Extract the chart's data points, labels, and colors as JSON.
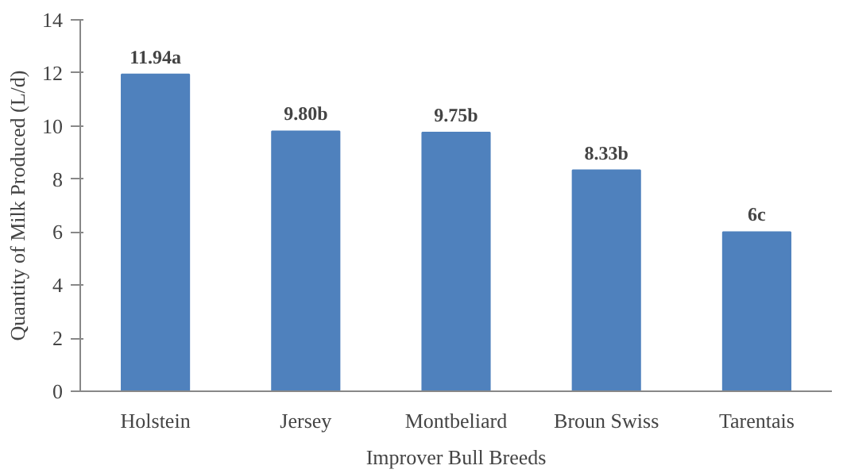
{
  "chart_data": {
    "type": "bar",
    "xlabel": "Improver Bull Breeds",
    "ylabel": "Quantity of Milk Produced (L/d)",
    "categories": [
      "Holstein",
      "Jersey",
      "Montbeliard",
      "Broun Swiss",
      "Tarentais"
    ],
    "values": [
      11.94,
      9.8,
      9.75,
      8.33,
      6
    ],
    "value_labels": [
      "11.94a",
      "9.80b",
      "9.75b",
      "8.33b",
      "6c"
    ],
    "color": "#4f81bd",
    "ylim": [
      0,
      14
    ],
    "yticks": [
      0,
      2,
      4,
      6,
      8,
      10,
      12,
      14
    ],
    "grid": false
  }
}
